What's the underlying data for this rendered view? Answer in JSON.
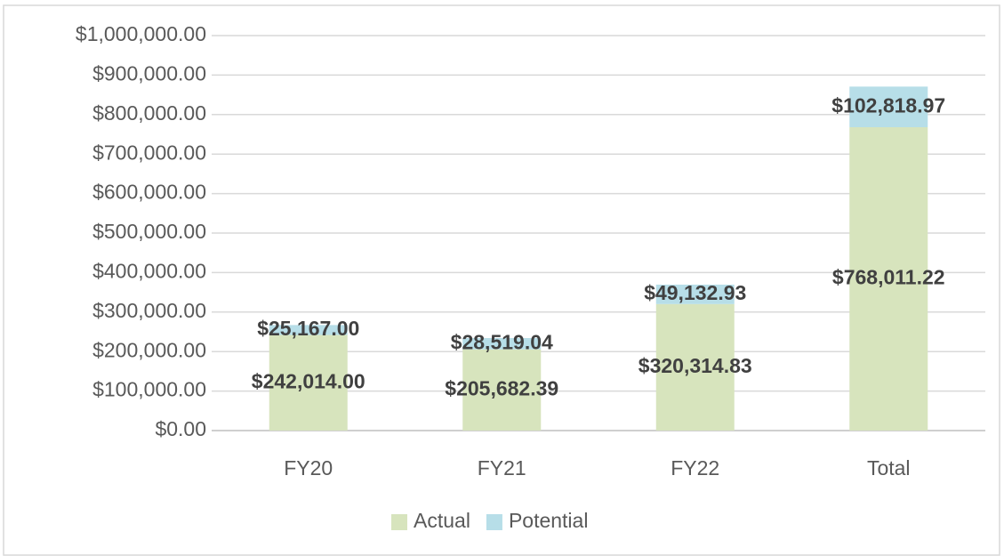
{
  "chart_data": {
    "type": "stacked_bar",
    "categories": [
      "FY20",
      "FY21",
      "FY22",
      "Total"
    ],
    "series": [
      {
        "name": "Actual",
        "color": "#d7e4bd",
        "values": [
          242014.0,
          205682.39,
          320314.83,
          768011.22
        ],
        "value_labels": [
          "$242,014.00",
          "$205,682.39",
          "$320,314.83",
          "$768,011.22"
        ]
      },
      {
        "name": "Potential",
        "color": "#b7dee8",
        "values": [
          25167.0,
          28519.04,
          49132.93,
          102818.97
        ],
        "value_labels": [
          "$25,167.00",
          "$28,519.04",
          "$49,132.93",
          "$102,818.97"
        ]
      }
    ],
    "ylim": [
      0,
      1000000
    ],
    "yticks": [
      {
        "value": 0,
        "label": "$0.00"
      },
      {
        "value": 100000,
        "label": "$100,000.00"
      },
      {
        "value": 200000,
        "label": "$200,000.00"
      },
      {
        "value": 300000,
        "label": "$300,000.00"
      },
      {
        "value": 400000,
        "label": "$400,000.00"
      },
      {
        "value": 500000,
        "label": "$500,000.00"
      },
      {
        "value": 600000,
        "label": "$600,000.00"
      },
      {
        "value": 700000,
        "label": "$700,000.00"
      },
      {
        "value": 800000,
        "label": "$800,000.00"
      },
      {
        "value": 900000,
        "label": "$900,000.00"
      },
      {
        "value": 1000000,
        "label": "$1,000,000.00"
      }
    ],
    "grid": true,
    "legend": "bottom"
  }
}
